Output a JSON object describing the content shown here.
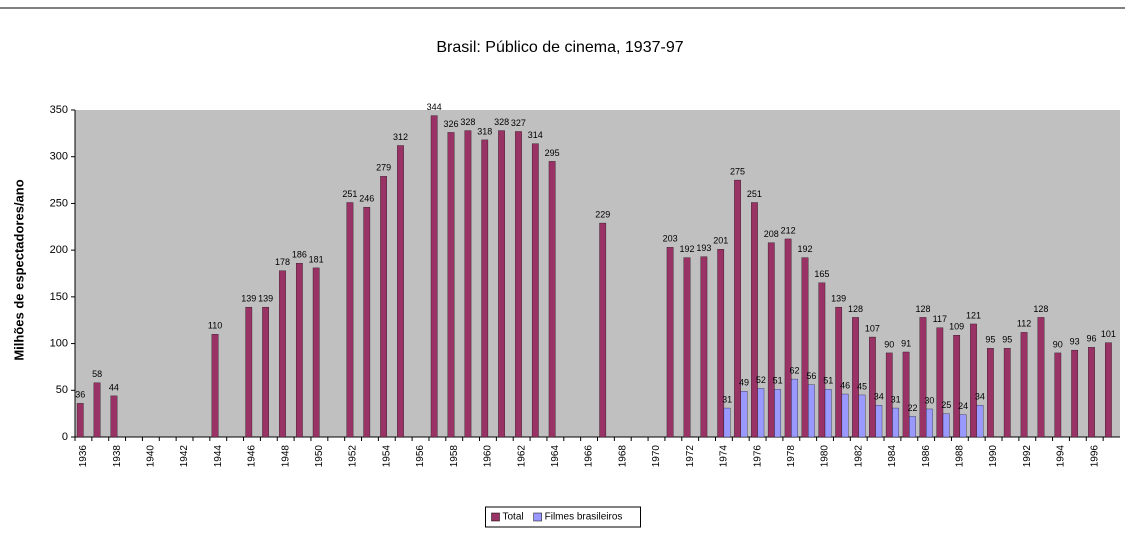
{
  "chart_data": {
    "type": "bar",
    "title": "Brasil: Público de cinema, 1937-97",
    "y_label": "Milhões de espectadores/ano",
    "categories": [
      "1936",
      null,
      "1938",
      null,
      "1940",
      null,
      "1942",
      null,
      "1944",
      null,
      "1946",
      null,
      "1948",
      null,
      "1950",
      null,
      "1952",
      null,
      "1954",
      null,
      "1956",
      null,
      "1958",
      null,
      "1960",
      null,
      "1962",
      null,
      "1964",
      null,
      "1966",
      null,
      "1968",
      null,
      "1970",
      null,
      "1972",
      null,
      "1974",
      null,
      "1976",
      null,
      "1978",
      null,
      "1980",
      null,
      "1982",
      null,
      "1984",
      null,
      "1986",
      null,
      "1988",
      null,
      "1990",
      null,
      "1992",
      null,
      "1994",
      null,
      "1996",
      null
    ],
    "series": [
      {
        "name": "Total",
        "color": "#993366",
        "values": [
          36,
          58,
          44,
          null,
          null,
          null,
          null,
          null,
          110,
          null,
          139,
          139,
          178,
          186,
          181,
          null,
          251,
          246,
          279,
          312,
          null,
          344,
          326,
          328,
          318,
          328,
          327,
          314,
          295,
          null,
          null,
          229,
          null,
          null,
          null,
          203,
          192,
          193,
          201,
          275,
          251,
          208,
          212,
          192,
          165,
          139,
          128,
          107,
          90,
          91,
          128,
          117,
          109,
          121,
          95,
          95,
          112,
          128,
          90,
          93,
          96,
          101
        ]
      },
      {
        "name": "Filmes brasileiros",
        "color": "#9999ff",
        "values": [
          null,
          null,
          null,
          null,
          null,
          null,
          null,
          null,
          null,
          null,
          null,
          null,
          null,
          null,
          null,
          null,
          null,
          null,
          null,
          null,
          null,
          null,
          null,
          null,
          null,
          null,
          null,
          null,
          null,
          null,
          null,
          null,
          null,
          null,
          null,
          null,
          null,
          null,
          31,
          49,
          52,
          51,
          62,
          56,
          51,
          46,
          45,
          34,
          31,
          22,
          30,
          25,
          24,
          34,
          null,
          null,
          null,
          null,
          null,
          null,
          null,
          null
        ]
      }
    ],
    "ylim": [
      0,
      350
    ],
    "yticks": [
      0,
      50,
      100,
      150,
      200,
      250,
      300,
      350
    ],
    "legend": "bottom"
  }
}
